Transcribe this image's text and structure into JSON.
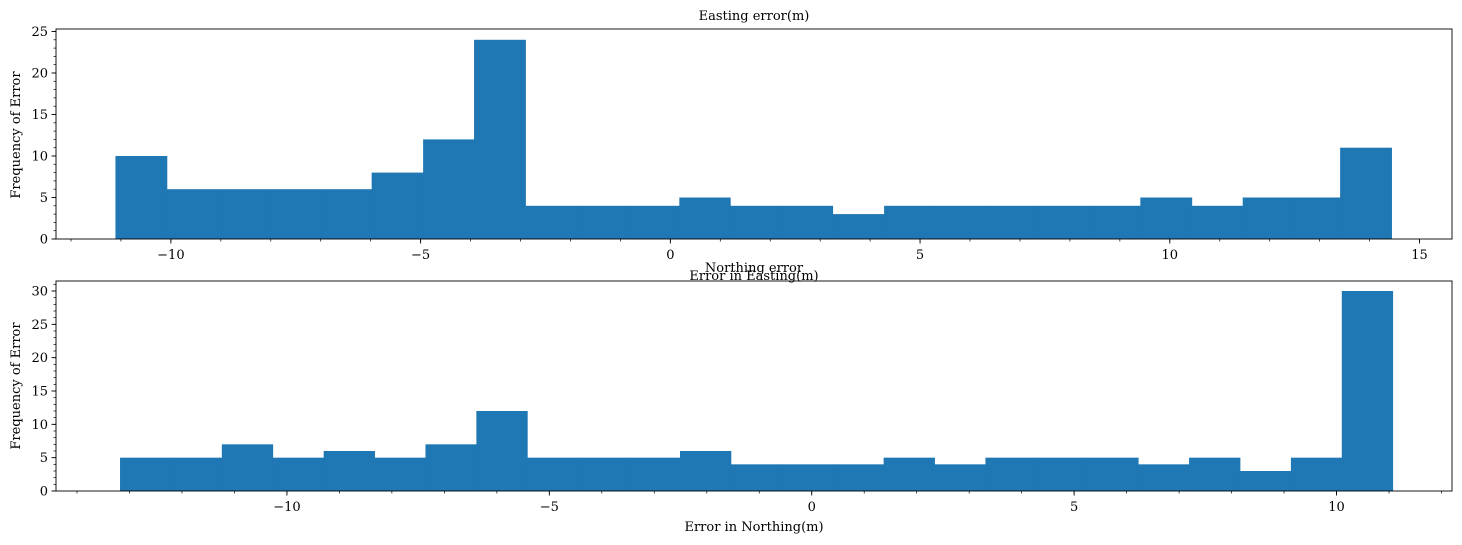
{
  "chart_data": [
    {
      "type": "bar",
      "title": "Easting error(m)",
      "xlabel": "Error in Easting(m)",
      "ylabel": "Frequency of Error",
      "xlim": [
        -12.3,
        15.65
      ],
      "ylim": [
        0,
        25.3
      ],
      "xticks": [
        -10,
        -5,
        0,
        5,
        10,
        15
      ],
      "yticks": [
        0,
        5,
        10,
        15,
        20,
        25
      ],
      "bin_edges": [
        -11.11,
        -10.08,
        -9.06,
        -8.03,
        -7.01,
        -5.98,
        -4.95,
        -3.93,
        -2.9,
        -1.88,
        -0.85,
        0.18,
        1.2,
        2.23,
        3.25,
        4.28,
        5.31,
        6.33,
        7.36,
        8.38,
        9.41,
        10.44,
        11.46,
        12.49,
        13.41,
        14.44
      ],
      "counts": [
        10,
        6,
        6,
        6,
        6,
        8,
        12,
        24,
        4,
        4,
        4,
        5,
        4,
        4,
        3,
        4,
        4,
        4,
        4,
        4,
        5,
        4,
        5,
        5,
        11
      ],
      "color": "#1f77b4"
    },
    {
      "type": "bar",
      "title": "Northing error",
      "xlabel": "Error in Northing(m)",
      "ylabel": "Frequency of Error",
      "xlim": [
        -14.4,
        12.2
      ],
      "ylim": [
        0,
        31.5
      ],
      "xticks": [
        -10,
        -5,
        0,
        5,
        10
      ],
      "yticks": [
        0,
        5,
        10,
        15,
        20,
        25,
        30
      ],
      "bin_edges": [
        -13.18,
        -12.21,
        -11.24,
        -10.27,
        -9.3,
        -8.33,
        -7.36,
        -6.39,
        -5.42,
        -4.45,
        -3.48,
        -2.51,
        -1.54,
        -0.57,
        0.4,
        1.37,
        2.34,
        3.31,
        4.28,
        5.25,
        6.22,
        7.19,
        8.16,
        9.13,
        10.1,
        11.07
      ],
      "counts": [
        5,
        5,
        7,
        5,
        6,
        5,
        7,
        12,
        5,
        5,
        5,
        6,
        4,
        4,
        4,
        5,
        4,
        5,
        5,
        5,
        4,
        5,
        3,
        5,
        30
      ],
      "color": "#1f77b4"
    }
  ]
}
